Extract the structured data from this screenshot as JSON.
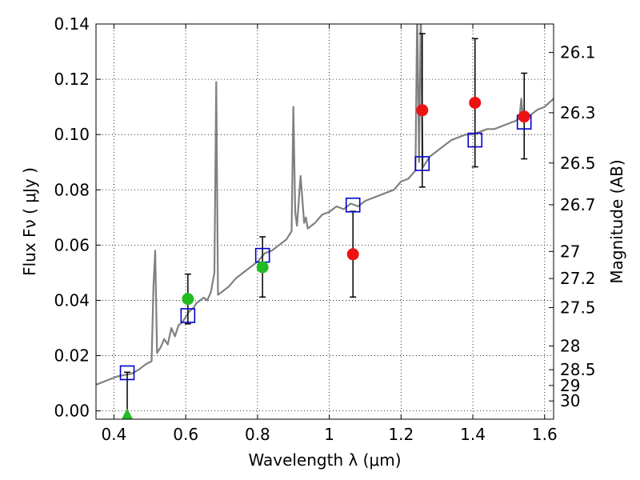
{
  "chart_data": {
    "type": "scatter",
    "xlabel": "Wavelength  λ (μm)",
    "ylabel": "Flux  Fν  ( μJy )",
    "y2label": "Magnitude (AB)",
    "xlim": [
      0.35,
      1.625
    ],
    "ylim": [
      -0.003,
      0.14
    ],
    "x_ticks": [
      0.4,
      0.6,
      0.8,
      1.0,
      1.2,
      1.4,
      1.6
    ],
    "x_tick_labels": [
      "0.4",
      "0.6",
      "0.8",
      "1",
      "1.2",
      "1.4",
      "1.6"
    ],
    "y_ticks": [
      0.0,
      0.02,
      0.04,
      0.06,
      0.08,
      0.1,
      0.12,
      0.14
    ],
    "y_tick_labels": [
      "0.00",
      "0.02",
      "0.04",
      "0.06",
      "0.08",
      "0.10",
      "0.12",
      "0.14"
    ],
    "mag_ticks": [
      {
        "label": "26.1",
        "flux": 0.1297
      },
      {
        "label": "26.3",
        "flux": 0.1079
      },
      {
        "label": "26.5",
        "flux": 0.0897
      },
      {
        "label": "26.7",
        "flux": 0.0746
      },
      {
        "label": "27",
        "flux": 0.0577
      },
      {
        "label": "27.2",
        "flux": 0.0479
      },
      {
        "label": "27.5",
        "flux": 0.0374
      },
      {
        "label": "28",
        "flux": 0.0235
      },
      {
        "label": "28.5",
        "flux": 0.0149
      },
      {
        "label": "29",
        "flux": 0.0092
      },
      {
        "label": "30",
        "flux": 0.0036
      }
    ],
    "grid": true,
    "series": [
      {
        "name": "model spectrum",
        "kind": "line",
        "color": "#808080",
        "x": [
          0.35,
          0.37,
          0.39,
          0.41,
          0.43,
          0.45,
          0.47,
          0.49,
          0.505,
          0.51,
          0.515,
          0.52,
          0.53,
          0.54,
          0.55,
          0.56,
          0.57,
          0.58,
          0.59,
          0.6,
          0.61,
          0.62,
          0.63,
          0.64,
          0.65,
          0.66,
          0.67,
          0.68,
          0.685,
          0.69,
          0.7,
          0.72,
          0.74,
          0.76,
          0.78,
          0.8,
          0.82,
          0.84,
          0.86,
          0.88,
          0.895,
          0.9,
          0.905,
          0.91,
          0.92,
          0.93,
          0.935,
          0.94,
          0.96,
          0.98,
          1.0,
          1.02,
          1.04,
          1.06,
          1.08,
          1.1,
          1.12,
          1.14,
          1.16,
          1.18,
          1.2,
          1.22,
          1.24,
          1.245,
          1.25,
          1.255,
          1.26,
          1.27,
          1.28,
          1.3,
          1.32,
          1.34,
          1.36,
          1.38,
          1.4,
          1.42,
          1.44,
          1.46,
          1.48,
          1.5,
          1.52,
          1.53,
          1.535,
          1.54,
          1.56,
          1.58,
          1.6,
          1.625
        ],
        "y": [
          0.0095,
          0.0105,
          0.0115,
          0.0125,
          0.013,
          0.0135,
          0.015,
          0.017,
          0.018,
          0.045,
          0.058,
          0.021,
          0.023,
          0.026,
          0.024,
          0.03,
          0.027,
          0.031,
          0.032,
          0.034,
          0.036,
          0.037,
          0.039,
          0.04,
          0.041,
          0.04,
          0.043,
          0.05,
          0.119,
          0.042,
          0.043,
          0.045,
          0.048,
          0.05,
          0.052,
          0.054,
          0.057,
          0.058,
          0.06,
          0.062,
          0.065,
          0.11,
          0.072,
          0.067,
          0.085,
          0.068,
          0.07,
          0.066,
          0.068,
          0.071,
          0.072,
          0.074,
          0.073,
          0.075,
          0.074,
          0.076,
          0.077,
          0.078,
          0.079,
          0.08,
          0.083,
          0.084,
          0.087,
          0.145,
          0.09,
          0.145,
          0.088,
          0.09,
          0.092,
          0.094,
          0.096,
          0.098,
          0.099,
          0.1,
          0.1,
          0.101,
          0.102,
          0.102,
          0.103,
          0.104,
          0.105,
          0.106,
          0.113,
          0.105,
          0.107,
          0.109,
          0.11,
          0.113
        ]
      },
      {
        "name": "model photometry",
        "kind": "square",
        "color": "#0000cc",
        "x": [
          0.437,
          0.606,
          0.814,
          1.066,
          1.259,
          1.406,
          1.543
        ],
        "y": [
          0.0138,
          0.0345,
          0.0563,
          0.0745,
          0.0895,
          0.098,
          0.1045
        ]
      },
      {
        "name": "observed (red)",
        "kind": "circle",
        "color": "#ee1111",
        "x": [
          1.066,
          1.259,
          1.406,
          1.543
        ],
        "y": [
          0.0567,
          0.1088,
          0.1115,
          0.1065
        ],
        "err_low": [
          0.0412,
          0.081,
          0.0883,
          0.0912
        ],
        "err_high": [
          0.0722,
          0.1365,
          0.1347,
          0.1222
        ]
      },
      {
        "name": "observed (green)",
        "kind": "circle",
        "color": "#22bb22",
        "x": [
          0.606,
          0.814
        ],
        "y": [
          0.0405,
          0.052
        ],
        "err_low": [
          0.0315,
          0.0412
        ],
        "err_high": [
          0.0495,
          0.063
        ]
      },
      {
        "name": "upper limit",
        "kind": "triangle",
        "color": "#22bb22",
        "x": [
          0.437
        ],
        "y": [
          -0.0012
        ],
        "err_low": [
          -0.0012
        ],
        "err_high": [
          0.014
        ]
      }
    ]
  }
}
